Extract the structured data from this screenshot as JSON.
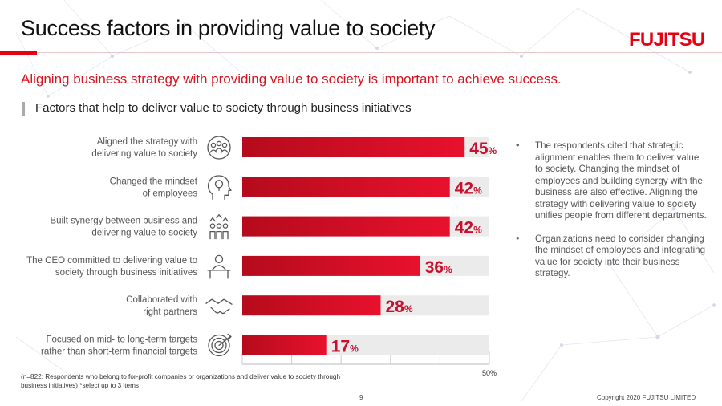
{
  "page": {
    "title": "Success factors in providing value to society",
    "logo_text": "FUJITSU",
    "subtitle": "Aligning business strategy with providing value to society is important to achieve success.",
    "section_heading": "Factors that help to deliver value to society through business initiatives",
    "bullets": [
      "The respondents cited that strategic alignment enables them to deliver value to society. Changing the mindset of employees and building synergy with the business are also effective. Aligning the strategy with delivering value to society unifies people from different departments.",
      "Organizations need to consider changing the mindset of employees and integrating value for society into their business strategy."
    ],
    "bullet_glyph": "•",
    "footnote": "(n=822: Respondents who belong to for-profit companies or organizations and deliver value to society through business initiatives) *select up to 3 items",
    "page_number": "9",
    "copyright": "Copyright 2020 FUJITSU LIMITED"
  },
  "colors": {
    "accent": "#e60012",
    "bar_start": "#b50b1c",
    "bar_end": "#e8112d",
    "track": "#ebebeb",
    "value_text": "#c8102e",
    "category_text": "#555555",
    "icon": "#555555"
  },
  "chart_data": {
    "type": "bar",
    "orientation": "horizontal",
    "categories": [
      [
        "Aligned the strategy with",
        "delivering value to society"
      ],
      [
        "Changed the mindset",
        "of employees"
      ],
      [
        "Built synergy between business and",
        "delivering value to society"
      ],
      [
        "The CEO committed to delivering value to",
        "society through business initiatives"
      ],
      [
        "Collaborated with",
        "right partners"
      ],
      [
        "Focused on mid- to long-term targets",
        "rather than short-term financial targets"
      ]
    ],
    "category_icons": [
      "people-network-icon",
      "lightbulb-head-icon",
      "team-arrows-icon",
      "person-desk-icon",
      "handshake-icon",
      "target-icon"
    ],
    "values": [
      45,
      42,
      42,
      36,
      28,
      17
    ],
    "value_labels": [
      "45",
      "42",
      "42",
      "36",
      "28",
      "17"
    ],
    "value_unit": "%",
    "xlim": [
      0,
      50
    ],
    "x_tick_label": "50%",
    "ticks": [
      0,
      10,
      20,
      30,
      40,
      50
    ],
    "title": "",
    "xlabel": "",
    "ylabel": ""
  }
}
